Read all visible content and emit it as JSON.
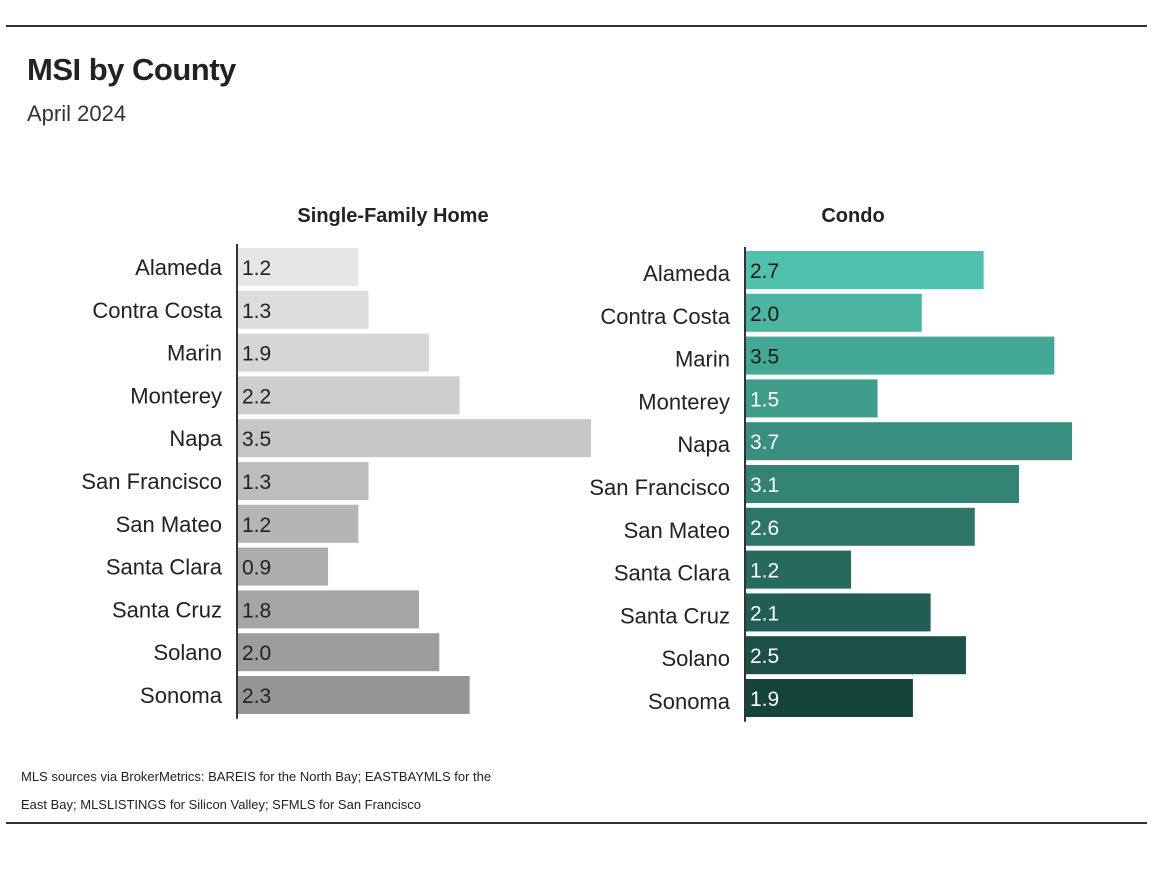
{
  "header": {
    "title": "MSI by County",
    "subtitle": "April 2024"
  },
  "footer": {
    "source": "MLS sources via BrokerMetrics: BAREIS for the North Bay; EASTBAYMLS for the East Bay; MLSLISTINGS for Silicon Valley; SFMLS for San Francisco"
  },
  "chart_data": [
    {
      "type": "bar",
      "orientation": "horizontal",
      "title": "Single-Family Home",
      "categories": [
        "Alameda",
        "Contra Costa",
        "Marin",
        "Monterey",
        "Napa",
        "San Francisco",
        "San Mateo",
        "Santa Clara",
        "Santa Cruz",
        "Solano",
        "Sonoma"
      ],
      "values": [
        1.2,
        1.3,
        1.9,
        2.2,
        3.5,
        1.3,
        1.2,
        0.9,
        1.8,
        2.0,
        2.3
      ],
      "value_labels": [
        "1.2",
        "1.3",
        "1.9",
        "2.2",
        "3.5",
        "1.3",
        "1.2",
        "0.9",
        "1.8",
        "2.0",
        "2.3"
      ],
      "xlim": [
        0,
        3.5
      ],
      "grid": false,
      "colors": [
        "#e6e6e6",
        "#dddddd",
        "#d6d6d6",
        "#cecece",
        "#c6c6c6",
        "#bdbdbd",
        "#b5b5b5",
        "#adadad",
        "#a5a5a5",
        "#9d9d9d",
        "#959595"
      ],
      "label_color": "#222222"
    },
    {
      "type": "bar",
      "orientation": "horizontal",
      "title": "Condo",
      "categories": [
        "Alameda",
        "Contra Costa",
        "Marin",
        "Monterey",
        "Napa",
        "San Francisco",
        "San Mateo",
        "Santa Clara",
        "Santa Cruz",
        "Solano",
        "Sonoma"
      ],
      "values": [
        2.7,
        2.0,
        3.5,
        1.5,
        3.7,
        3.1,
        2.6,
        1.2,
        2.1,
        2.5,
        1.9
      ],
      "value_labels": [
        "2.7",
        "2.0",
        "3.5",
        "1.5",
        "3.7",
        "3.1",
        "2.6",
        "1.2",
        "2.1",
        "2.5",
        "1.9"
      ],
      "xlim": [
        0,
        3.7
      ],
      "grid": false,
      "colors": [
        "#4fc1ae",
        "#4bb5a2",
        "#44a897",
        "#3e9c8b",
        "#388f80",
        "#328374",
        "#2c7669",
        "#26695d",
        "#205d52",
        "#1a5046",
        "#15443b"
      ],
      "label_colors": [
        "#1a1a1a",
        "#1a1a1a",
        "#1a1a1a",
        "#ffffff",
        "#ffffff",
        "#ffffff",
        "#ffffff",
        "#ffffff",
        "#ffffff",
        "#ffffff",
        "#ffffff"
      ]
    }
  ]
}
